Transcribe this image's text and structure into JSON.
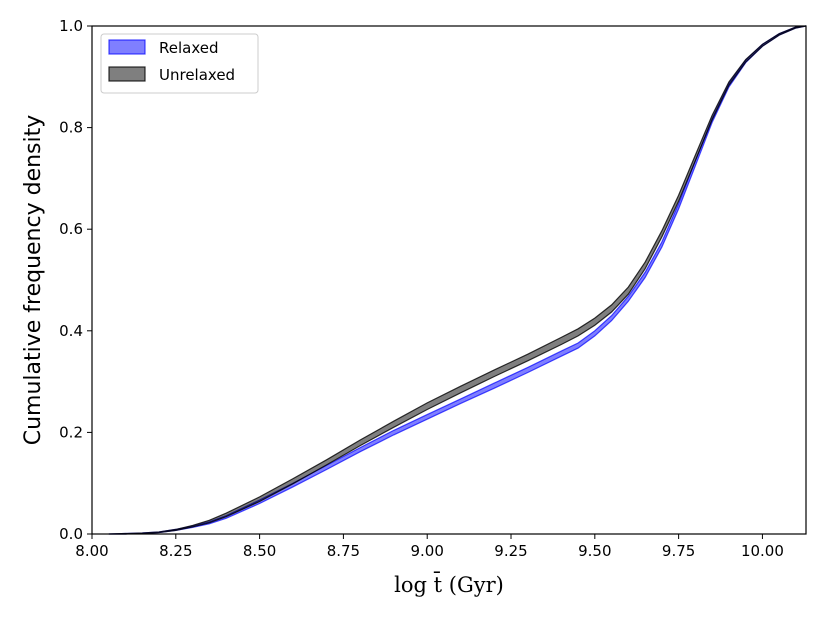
{
  "chart_data": {
    "type": "area",
    "title": "",
    "xlabel": "log t̄ (Gyr)",
    "ylabel": "Cumulative frequency density",
    "xlim": [
      8.0,
      10.13
    ],
    "ylim": [
      0.0,
      1.0
    ],
    "xticks": [
      8.0,
      8.25,
      8.5,
      8.75,
      9.0,
      9.25,
      9.5,
      9.75,
      10.0
    ],
    "xtick_labels": [
      "8.00",
      "8.25",
      "8.50",
      "8.75",
      "9.00",
      "9.25",
      "9.50",
      "9.75",
      "10.00"
    ],
    "yticks": [
      0.0,
      0.2,
      0.4,
      0.6,
      0.8,
      1.0
    ],
    "ytick_labels": [
      "0.0",
      "0.2",
      "0.4",
      "0.6",
      "0.8",
      "1.0"
    ],
    "grid": false,
    "legend_position": "top-left",
    "series": [
      {
        "name": "Relaxed",
        "color": "#0000ff",
        "x": [
          8.05,
          8.1,
          8.15,
          8.2,
          8.25,
          8.3,
          8.35,
          8.4,
          8.5,
          8.6,
          8.7,
          8.8,
          8.9,
          9.0,
          9.1,
          9.2,
          9.3,
          9.4,
          9.45,
          9.5,
          9.55,
          9.6,
          9.65,
          9.7,
          9.75,
          9.8,
          9.85,
          9.9,
          9.95,
          10.0,
          10.05,
          10.1,
          10.13
        ],
        "lower": [
          0.0,
          0.0,
          0.001,
          0.003,
          0.007,
          0.013,
          0.02,
          0.031,
          0.06,
          0.093,
          0.127,
          0.162,
          0.195,
          0.226,
          0.257,
          0.287,
          0.318,
          0.35,
          0.366,
          0.39,
          0.42,
          0.458,
          0.505,
          0.565,
          0.64,
          0.725,
          0.81,
          0.88,
          0.928,
          0.96,
          0.982,
          0.996,
          1.0
        ],
        "upper": [
          0.0,
          0.001,
          0.002,
          0.004,
          0.009,
          0.016,
          0.024,
          0.036,
          0.067,
          0.1,
          0.135,
          0.17,
          0.204,
          0.235,
          0.266,
          0.297,
          0.328,
          0.36,
          0.376,
          0.4,
          0.43,
          0.468,
          0.515,
          0.575,
          0.65,
          0.735,
          0.818,
          0.887,
          0.933,
          0.964,
          0.985,
          0.998,
          1.0
        ]
      },
      {
        "name": "Unrelaxed",
        "color": "#3c3c3c",
        "x": [
          8.05,
          8.1,
          8.15,
          8.2,
          8.25,
          8.3,
          8.35,
          8.4,
          8.5,
          8.6,
          8.7,
          8.8,
          8.9,
          9.0,
          9.1,
          9.2,
          9.3,
          9.4,
          9.45,
          9.5,
          9.55,
          9.6,
          9.65,
          9.7,
          9.75,
          9.8,
          9.85,
          9.9,
          9.95,
          10.0,
          10.05,
          10.1,
          10.13
        ],
        "lower": [
          0.0,
          0.0,
          0.001,
          0.003,
          0.007,
          0.014,
          0.022,
          0.034,
          0.064,
          0.099,
          0.136,
          0.174,
          0.21,
          0.245,
          0.278,
          0.31,
          0.341,
          0.373,
          0.39,
          0.411,
          0.437,
          0.472,
          0.522,
          0.585,
          0.655,
          0.735,
          0.815,
          0.883,
          0.929,
          0.96,
          0.982,
          0.996,
          1.0
        ],
        "upper": [
          0.0,
          0.001,
          0.002,
          0.004,
          0.009,
          0.017,
          0.027,
          0.041,
          0.073,
          0.109,
          0.146,
          0.185,
          0.222,
          0.258,
          0.291,
          0.323,
          0.354,
          0.387,
          0.404,
          0.425,
          0.451,
          0.486,
          0.535,
          0.597,
          0.667,
          0.746,
          0.824,
          0.89,
          0.934,
          0.964,
          0.985,
          0.998,
          1.0
        ]
      }
    ]
  }
}
